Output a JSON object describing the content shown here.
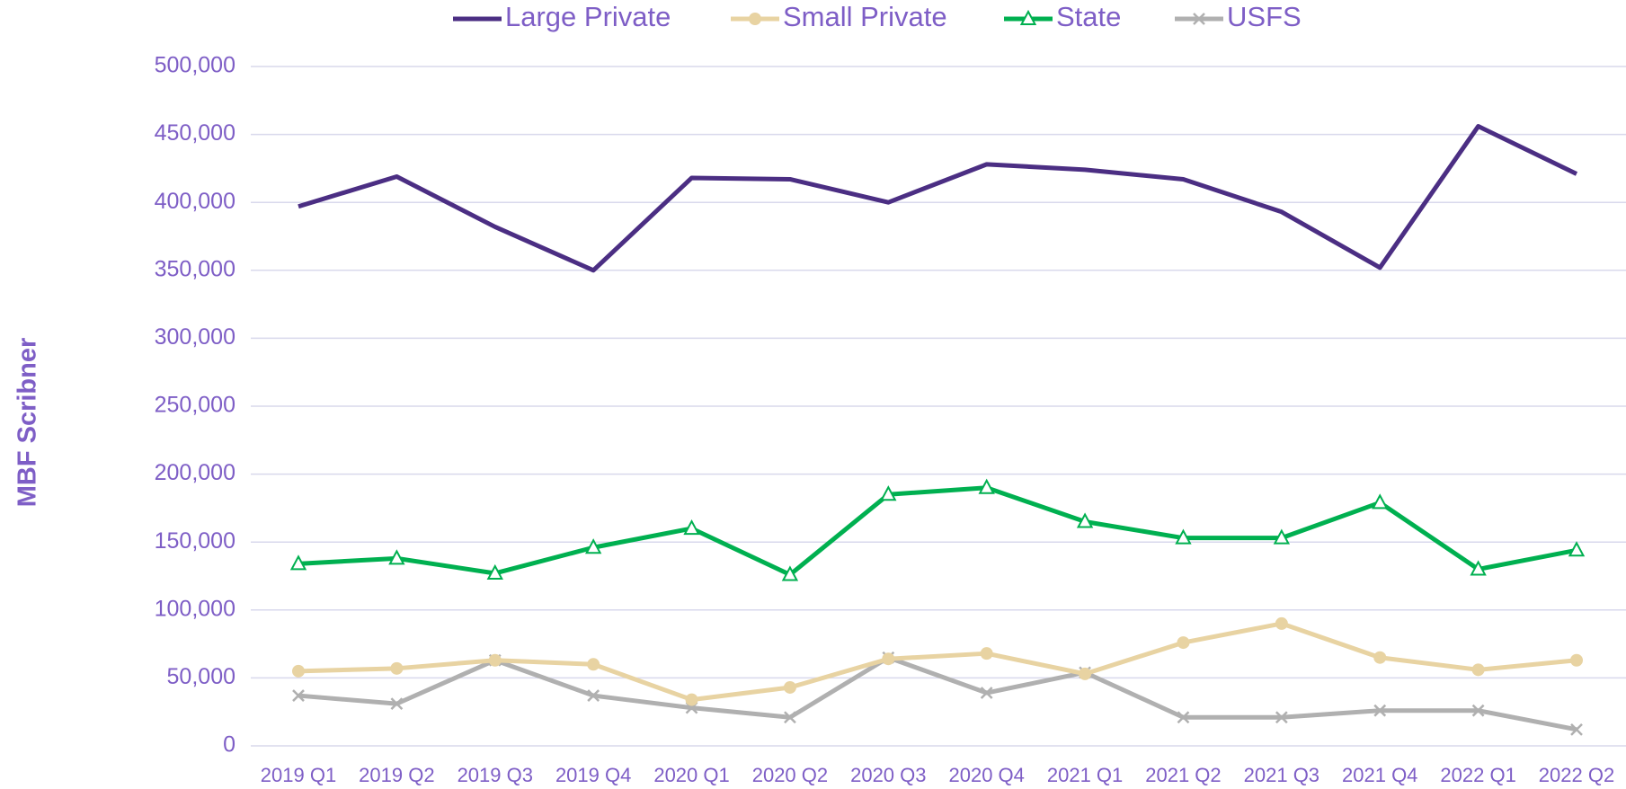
{
  "chart_data": {
    "type": "line",
    "y_label": "MBF Scribner",
    "categories": [
      "2019 Q1",
      "2019 Q2",
      "2019 Q3",
      "2019 Q4",
      "2020 Q1",
      "2020 Q2",
      "2020 Q3",
      "2020 Q4",
      "2021 Q1",
      "2021 Q2",
      "2021 Q3",
      "2021 Q4",
      "2022 Q1",
      "2022 Q2"
    ],
    "series": [
      {
        "name": "Large Private",
        "color": "#4b2e83",
        "marker": "none",
        "values": [
          397000,
          419000,
          382000,
          350000,
          418000,
          417000,
          400000,
          428000,
          424000,
          417000,
          393000,
          352000,
          456000,
          421000
        ]
      },
      {
        "name": "Small Private",
        "color": "#e8d3a2",
        "marker": "circle",
        "values": [
          55000,
          57000,
          63000,
          60000,
          34000,
          43000,
          64000,
          68000,
          53000,
          76000,
          90000,
          65000,
          56000,
          63000
        ]
      },
      {
        "name": "State",
        "color": "#00b050",
        "marker": "triangle",
        "values": [
          134000,
          138000,
          127000,
          146000,
          160000,
          126000,
          185000,
          190000,
          165000,
          153000,
          153000,
          179000,
          130000,
          144000
        ]
      },
      {
        "name": "USFS",
        "color": "#b0b0b0",
        "marker": "x",
        "values": [
          37000,
          31000,
          63000,
          37000,
          28000,
          21000,
          65000,
          39000,
          54000,
          21000,
          21000,
          26000,
          26000,
          12000
        ]
      }
    ],
    "ylim": [
      0,
      500000
    ],
    "yticks": [
      0,
      {
        "value": 50000,
        "label": "50,000"
      },
      {
        "value": 100000,
        "label": "100,000"
      },
      {
        "value": 150000,
        "label": "150,000"
      },
      {
        "value": 200000,
        "label": "200,000"
      },
      {
        "value": 250000,
        "label": "250,000"
      },
      {
        "value": 300000,
        "label": "300,000"
      },
      {
        "value": 350000,
        "label": "350,000"
      },
      {
        "value": 400000,
        "label": "400,000"
      },
      {
        "value": 450000,
        "label": "450,000"
      },
      {
        "value": 500000,
        "label": "500,000"
      }
    ],
    "grid": true,
    "legend": "top"
  }
}
